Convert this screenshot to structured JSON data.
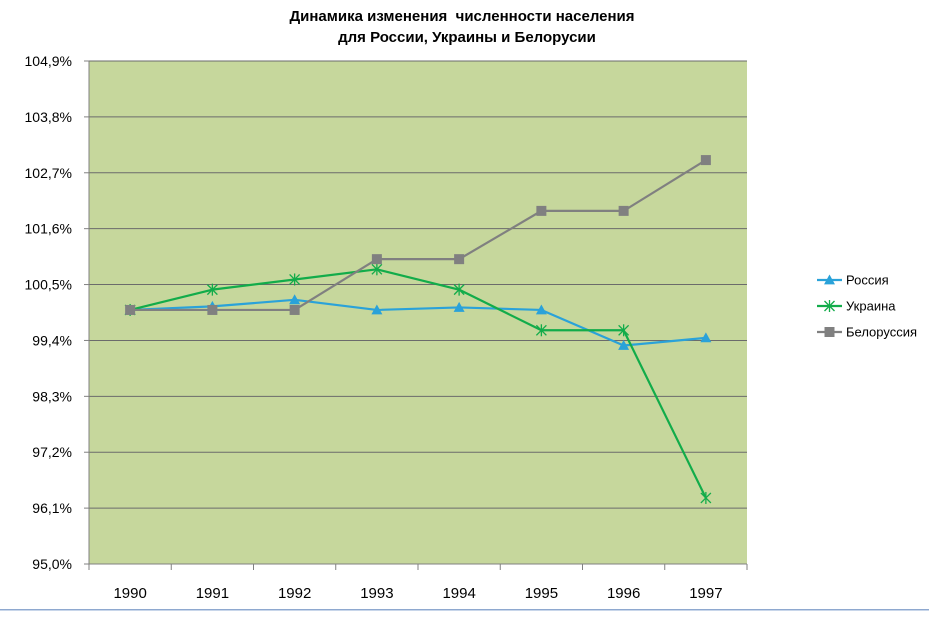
{
  "colors": {
    "plot_background": "#c6d79c",
    "gridline": "#6b6b6b",
    "russia": "#2aa2d9",
    "ukraine": "#12ac4a",
    "belarus": "#808080"
  },
  "chart_data": {
    "type": "line",
    "title": [
      "Динамика изменения  численности населения",
      "для России, Украины и Белорусии"
    ],
    "xlabel": "",
    "ylabel": "",
    "x": [
      "1990",
      "1991",
      "1992",
      "1993",
      "1994",
      "1995",
      "1996",
      "1997"
    ],
    "ylim": [
      95.0,
      104.9
    ],
    "yticks": [
      95.0,
      96.1,
      97.2,
      98.3,
      99.4,
      100.5,
      101.6,
      102.7,
      103.8,
      104.9
    ],
    "ytick_labels": [
      "95,0%",
      "96,1%",
      "97,2%",
      "98,3%",
      "99,4%",
      "100,5%",
      "101,6%",
      "102,7%",
      "103,8%",
      "104,9%"
    ],
    "grid": true,
    "legend_position": "right",
    "series": [
      {
        "name": "Россия",
        "marker": "triangle",
        "values": [
          100.0,
          100.07,
          100.2,
          100.0,
          100.05,
          100.0,
          99.3,
          99.45
        ]
      },
      {
        "name": "Украина",
        "marker": "star",
        "values": [
          100.0,
          100.4,
          100.6,
          100.8,
          100.4,
          99.6,
          99.6,
          96.3
        ]
      },
      {
        "name": "Белоруссия",
        "marker": "square",
        "values": [
          100.0,
          100.0,
          100.0,
          101.0,
          101.0,
          101.95,
          101.95,
          102.95
        ]
      }
    ]
  }
}
